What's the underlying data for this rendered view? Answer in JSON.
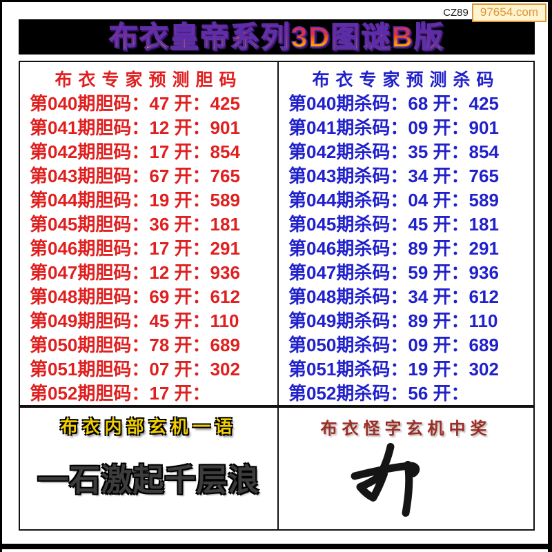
{
  "watermark": {
    "prefix": "CZ89",
    "site": "97654.com"
  },
  "title": "布衣皇帝系列3D图谜B版",
  "dan_panel": {
    "header": "布衣专家预测胆码",
    "rows": [
      {
        "period": "040",
        "code": "47",
        "open": "425",
        "text": "第040期胆码：47 开：425"
      },
      {
        "period": "041",
        "code": "12",
        "open": "901",
        "text": "第041期胆码：12 开：901"
      },
      {
        "period": "042",
        "code": "17",
        "open": "854",
        "text": "第042期胆码：17 开：854"
      },
      {
        "period": "043",
        "code": "67",
        "open": "765",
        "text": "第043期胆码：67 开：765"
      },
      {
        "period": "044",
        "code": "19",
        "open": "589",
        "text": "第044期胆码：19 开：589"
      },
      {
        "period": "045",
        "code": "36",
        "open": "181",
        "text": "第045期胆码：36 开：181"
      },
      {
        "period": "046",
        "code": "17",
        "open": "291",
        "text": "第046期胆码：17 开：291"
      },
      {
        "period": "047",
        "code": "12",
        "open": "936",
        "text": "第047期胆码：12 开：936"
      },
      {
        "period": "048",
        "code": "69",
        "open": "612",
        "text": "第048期胆码：69 开：612"
      },
      {
        "period": "049",
        "code": "45",
        "open": "110",
        "text": "第049期胆码：45 开：110"
      },
      {
        "period": "050",
        "code": "78",
        "open": "689",
        "text": "第050期胆码：78 开：689"
      },
      {
        "period": "051",
        "code": "07",
        "open": "302",
        "text": "第051期胆码：07 开：302"
      },
      {
        "period": "052",
        "code": "17",
        "open": "",
        "text": "第052期胆码：17 开："
      }
    ]
  },
  "sha_panel": {
    "header": "布衣专家预测杀码",
    "rows": [
      {
        "period": "040",
        "code": "68",
        "open": "425",
        "text": "第040期杀码：68 开：425"
      },
      {
        "period": "041",
        "code": "09",
        "open": "901",
        "text": "第041期杀码：09 开：901"
      },
      {
        "period": "042",
        "code": "35",
        "open": "854",
        "text": "第042期杀码：35 开：854"
      },
      {
        "period": "043",
        "code": "34",
        "open": "765",
        "text": "第043期杀码：34 开：765"
      },
      {
        "period": "044",
        "code": "04",
        "open": "589",
        "text": "第044期杀码：04 开：589"
      },
      {
        "period": "045",
        "code": "45",
        "open": "181",
        "text": "第045期杀码：45 开：181"
      },
      {
        "period": "046",
        "code": "89",
        "open": "291",
        "text": "第046期杀码：89 开：291"
      },
      {
        "period": "047",
        "code": "59",
        "open": "936",
        "text": "第047期杀码：59 开：936"
      },
      {
        "period": "048",
        "code": "34",
        "open": "612",
        "text": "第048期杀码：34 开：612"
      },
      {
        "period": "049",
        "code": "89",
        "open": "110",
        "text": "第049期杀码：89 开：110"
      },
      {
        "period": "050",
        "code": "09",
        "open": "689",
        "text": "第050期杀码：09 开：689"
      },
      {
        "period": "051",
        "code": "19",
        "open": "302",
        "text": "第051期杀码：19 开：302"
      },
      {
        "period": "052",
        "code": "56",
        "open": "",
        "text": "第052期杀码：56 开："
      }
    ]
  },
  "mystery_left": {
    "header": "布衣内部玄机一语",
    "phrase": "一石激起千层浪"
  },
  "mystery_right": {
    "header": "布衣怪字玄机中奖",
    "glyph_name": "handwritten-cursive-character"
  },
  "colors": {
    "dan_text": "#e01f1f",
    "sha_text": "#2121cc",
    "mystery_header_yellow": "#f2cf00",
    "mystery_header_red": "#9c2d24",
    "badge_accent": "#dc9632",
    "title_gradient_top": "#b83a8e",
    "title_gradient_bottom": "#ffd700"
  }
}
